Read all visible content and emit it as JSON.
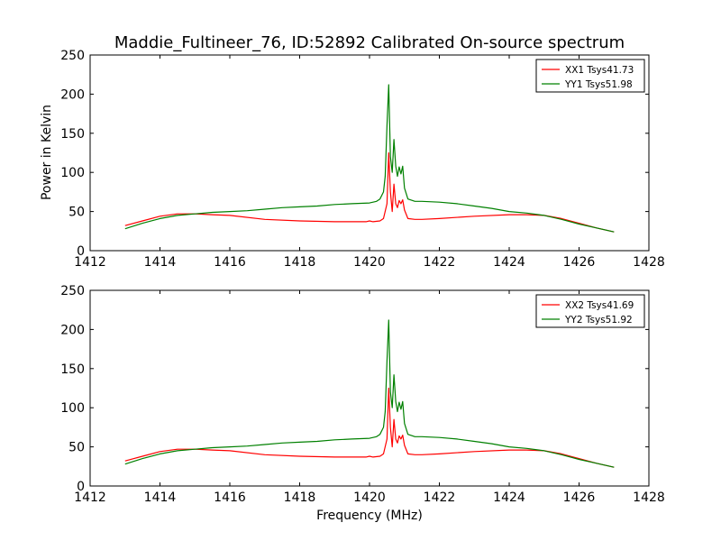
{
  "title": "Maddie_Fultineer_76, ID:52892 Calibrated On-source spectrum",
  "ylabel": "Power in Kelvin",
  "xlabel": "Frequency (MHz)",
  "colors": {
    "xx": "#ff0000",
    "yy": "#008000",
    "axes": "#000000"
  },
  "chart_data": [
    {
      "type": "line",
      "title": "Maddie_Fultineer_76, ID:52892 Calibrated On-source spectrum",
      "xlabel": "",
      "ylabel": "Power in Kelvin",
      "xlim": [
        1412,
        1428
      ],
      "ylim": [
        0,
        250
      ],
      "xticks": [
        "1412",
        "1414",
        "1416",
        "1418",
        "1420",
        "1422",
        "1424",
        "1426",
        "1428"
      ],
      "yticks": [
        "0",
        "50",
        "100",
        "150",
        "200",
        "250"
      ],
      "legend_position": "top-right",
      "series": [
        {
          "name": "XX1 Tsys41.73",
          "color": "#ff0000",
          "x": [
            1413.0,
            1413.5,
            1414.0,
            1414.5,
            1415.0,
            1415.5,
            1416.0,
            1417.0,
            1418.0,
            1419.0,
            1419.9,
            1420.0,
            1420.1,
            1420.3,
            1420.4,
            1420.5,
            1420.55,
            1420.6,
            1420.65,
            1420.7,
            1420.75,
            1420.8,
            1420.85,
            1420.9,
            1420.95,
            1421.0,
            1421.1,
            1421.3,
            1421.5,
            1422.0,
            1423.0,
            1424.0,
            1424.5,
            1425.0,
            1425.5,
            1426.0,
            1426.5,
            1427.0
          ],
          "y": [
            32,
            38,
            44,
            47,
            47,
            46,
            45,
            40,
            38,
            37,
            37,
            38,
            37,
            38,
            41,
            60,
            125,
            75,
            50,
            85,
            60,
            55,
            64,
            60,
            65,
            52,
            41,
            40,
            40,
            41,
            44,
            46,
            46,
            45,
            41,
            35,
            29,
            24
          ]
        },
        {
          "name": "YY1 Tsys51.98",
          "color": "#008000",
          "x": [
            1413.0,
            1413.5,
            1414.0,
            1414.5,
            1415.0,
            1415.5,
            1416.0,
            1416.5,
            1417.0,
            1417.5,
            1418.0,
            1418.5,
            1419.0,
            1419.5,
            1420.0,
            1420.2,
            1420.3,
            1420.4,
            1420.45,
            1420.5,
            1420.55,
            1420.6,
            1420.65,
            1420.7,
            1420.75,
            1420.8,
            1420.85,
            1420.9,
            1420.95,
            1421.0,
            1421.1,
            1421.3,
            1421.5,
            1422.0,
            1422.5,
            1423.0,
            1423.5,
            1424.0,
            1424.5,
            1425.0,
            1425.5,
            1426.0,
            1426.5,
            1427.0
          ],
          "y": [
            28,
            35,
            41,
            45,
            47,
            49,
            50,
            51,
            53,
            55,
            56,
            57,
            59,
            60,
            61,
            63,
            66,
            75,
            95,
            160,
            212,
            120,
            100,
            142,
            108,
            95,
            107,
            98,
            108,
            80,
            66,
            63,
            63,
            62,
            60,
            57,
            54,
            50,
            48,
            45,
            40,
            34,
            29,
            24
          ]
        }
      ]
    },
    {
      "type": "line",
      "title": "",
      "xlabel": "Frequency (MHz)",
      "ylabel": "",
      "xlim": [
        1412,
        1428
      ],
      "ylim": [
        0,
        250
      ],
      "xticks": [
        "1412",
        "1414",
        "1416",
        "1418",
        "1420",
        "1422",
        "1424",
        "1426",
        "1428"
      ],
      "yticks": [
        "0",
        "50",
        "100",
        "150",
        "200",
        "250"
      ],
      "legend_position": "top-right",
      "series": [
        {
          "name": "XX2 Tsys41.69",
          "color": "#ff0000",
          "x": [
            1413.0,
            1413.5,
            1414.0,
            1414.5,
            1415.0,
            1415.5,
            1416.0,
            1417.0,
            1418.0,
            1419.0,
            1419.9,
            1420.0,
            1420.1,
            1420.3,
            1420.4,
            1420.5,
            1420.55,
            1420.6,
            1420.65,
            1420.7,
            1420.75,
            1420.8,
            1420.85,
            1420.9,
            1420.95,
            1421.0,
            1421.1,
            1421.3,
            1421.5,
            1422.0,
            1423.0,
            1424.0,
            1424.5,
            1425.0,
            1425.5,
            1426.0,
            1426.5,
            1427.0
          ],
          "y": [
            32,
            38,
            44,
            47,
            47,
            46,
            45,
            40,
            38,
            37,
            37,
            38,
            37,
            38,
            41,
            60,
            125,
            75,
            50,
            85,
            60,
            55,
            64,
            60,
            65,
            52,
            41,
            40,
            40,
            41,
            44,
            46,
            46,
            45,
            41,
            35,
            29,
            24
          ]
        },
        {
          "name": "YY2 Tsys51.92",
          "color": "#008000",
          "x": [
            1413.0,
            1413.5,
            1414.0,
            1414.5,
            1415.0,
            1415.5,
            1416.0,
            1416.5,
            1417.0,
            1417.5,
            1418.0,
            1418.5,
            1419.0,
            1419.5,
            1420.0,
            1420.2,
            1420.3,
            1420.4,
            1420.45,
            1420.5,
            1420.55,
            1420.6,
            1420.65,
            1420.7,
            1420.75,
            1420.8,
            1420.85,
            1420.9,
            1420.95,
            1421.0,
            1421.1,
            1421.3,
            1421.5,
            1422.0,
            1422.5,
            1423.0,
            1423.5,
            1424.0,
            1424.5,
            1425.0,
            1425.5,
            1426.0,
            1426.5,
            1427.0
          ],
          "y": [
            28,
            35,
            41,
            45,
            47,
            49,
            50,
            51,
            53,
            55,
            56,
            57,
            59,
            60,
            61,
            63,
            66,
            75,
            95,
            160,
            212,
            120,
            100,
            142,
            108,
            95,
            107,
            98,
            108,
            80,
            66,
            63,
            63,
            62,
            60,
            57,
            54,
            50,
            48,
            45,
            40,
            34,
            29,
            24
          ]
        }
      ]
    }
  ]
}
